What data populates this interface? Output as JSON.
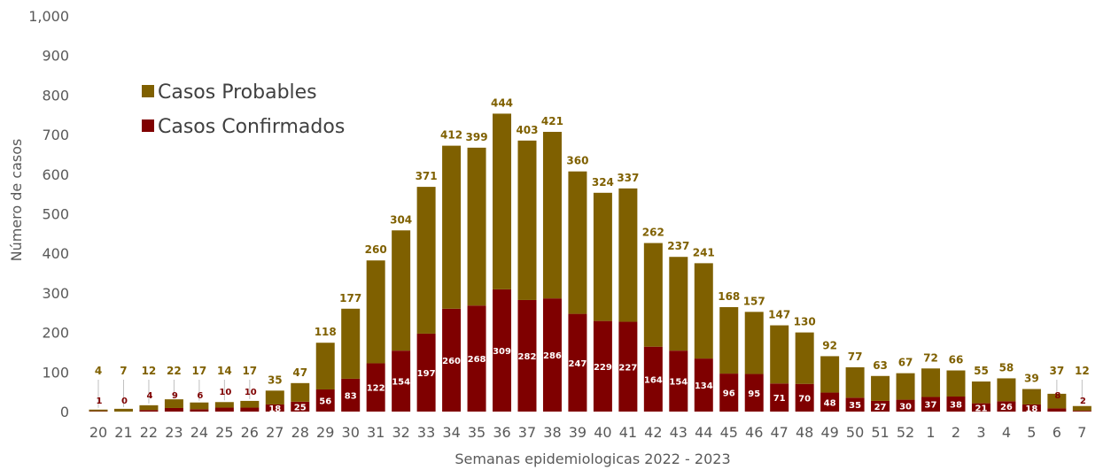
{
  "chart_data": {
    "type": "bar",
    "stacked": true,
    "title": "",
    "xlabel": "Semanas epidemiologicas 2022 - 2023",
    "ylabel": "Número de casos",
    "ylim": [
      0,
      1000
    ],
    "yticks": [
      "0",
      "100",
      "200",
      "300",
      "400",
      "500",
      "600",
      "700",
      "800",
      "900",
      "1,000"
    ],
    "categories": [
      "20",
      "21",
      "22",
      "23",
      "24",
      "25",
      "26",
      "27",
      "28",
      "29",
      "30",
      "31",
      "32",
      "33",
      "34",
      "35",
      "36",
      "37",
      "38",
      "39",
      "40",
      "41",
      "42",
      "43",
      "44",
      "45",
      "46",
      "47",
      "48",
      "49",
      "50",
      "51",
      "52",
      "1",
      "2",
      "3",
      "4",
      "5",
      "6",
      "7"
    ],
    "series": [
      {
        "name": "Casos Confirmados",
        "color": "#7f0000",
        "values": [
          1,
          0,
          4,
          9,
          6,
          10,
          10,
          18,
          25,
          56,
          83,
          122,
          154,
          197,
          260,
          268,
          309,
          282,
          286,
          247,
          229,
          227,
          164,
          154,
          134,
          96,
          95,
          71,
          70,
          48,
          35,
          27,
          30,
          37,
          38,
          21,
          26,
          18,
          8,
          2
        ]
      },
      {
        "name": "Casos Probables",
        "color": "#7f6000",
        "values": [
          4,
          7,
          12,
          22,
          17,
          14,
          17,
          35,
          47,
          118,
          177,
          260,
          304,
          371,
          412,
          399,
          444,
          403,
          421,
          360,
          324,
          337,
          262,
          237,
          241,
          168,
          157,
          147,
          130,
          92,
          77,
          63,
          67,
          72,
          66,
          55,
          58,
          39,
          37,
          12
        ]
      }
    ],
    "legend_position": "top-left",
    "grid": false
  }
}
